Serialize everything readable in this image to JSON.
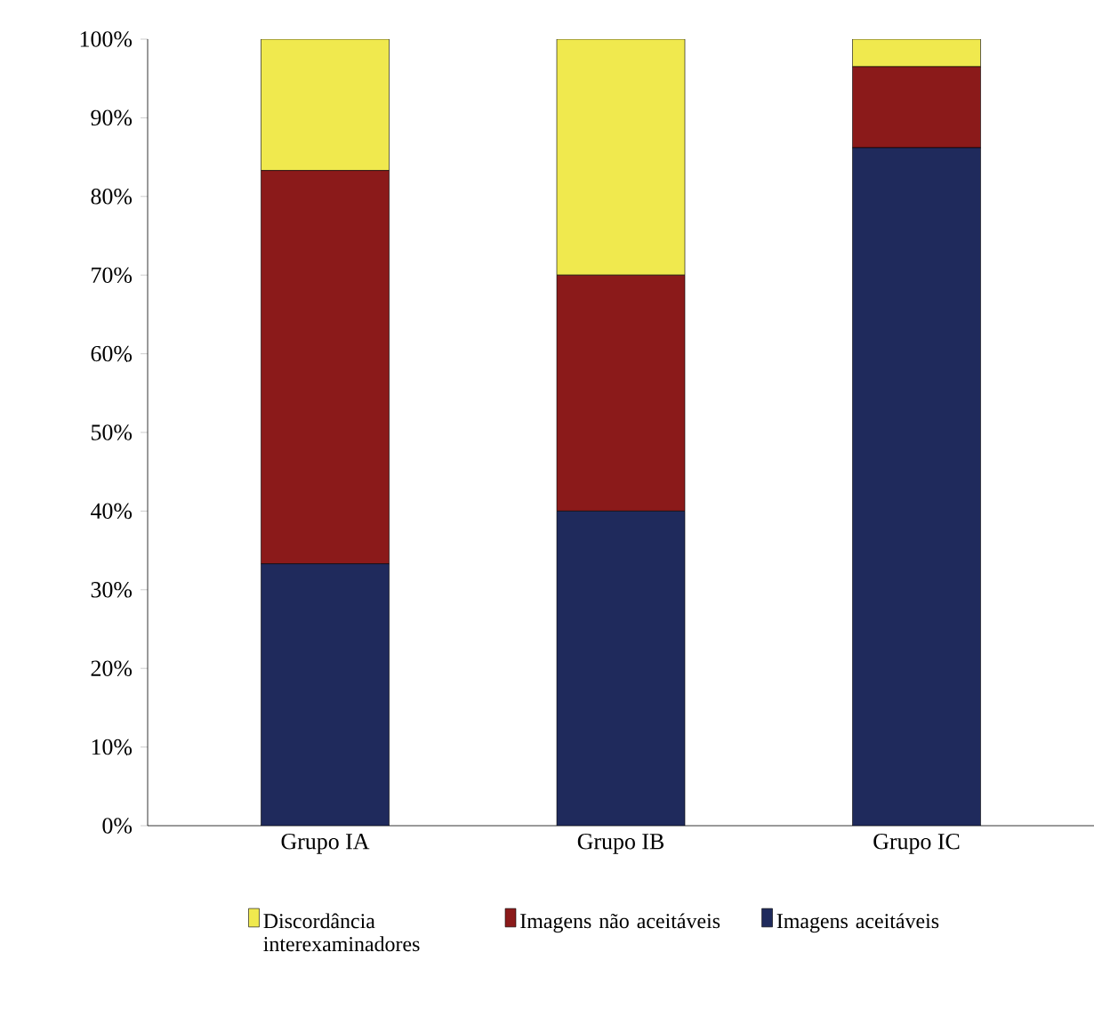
{
  "chart_data": {
    "type": "bar",
    "stacked": true,
    "categories": [
      "Grupo IA",
      "Grupo IB",
      "Grupo IC"
    ],
    "series": [
      {
        "name": "Imagens aceitáveis",
        "color": "#1f2a5c",
        "values": [
          33.3,
          40,
          86.2
        ]
      },
      {
        "name": "Imagens não aceitáveis",
        "color": "#8b1a1a",
        "values": [
          50,
          30,
          10.3
        ]
      },
      {
        "name": "Discordância interexaminadores",
        "color": "#f0e94e",
        "values": [
          16.7,
          30,
          3.5
        ]
      }
    ],
    "ylim": [
      0,
      100
    ],
    "yticks": [
      {
        "value": 0,
        "label": "0%"
      },
      {
        "value": 10,
        "label": "10%"
      },
      {
        "value": 20,
        "label": "20%"
      },
      {
        "value": 30,
        "label": "30%"
      },
      {
        "value": 40,
        "label": "40%"
      },
      {
        "value": 50,
        "label": "50%"
      },
      {
        "value": 60,
        "label": "60%"
      },
      {
        "value": 70,
        "label": "70%"
      },
      {
        "value": 80,
        "label": "80%"
      },
      {
        "value": 90,
        "label": "90%"
      },
      {
        "value": 100,
        "label": "100%"
      }
    ],
    "grid": false,
    "legend": "bottom"
  }
}
